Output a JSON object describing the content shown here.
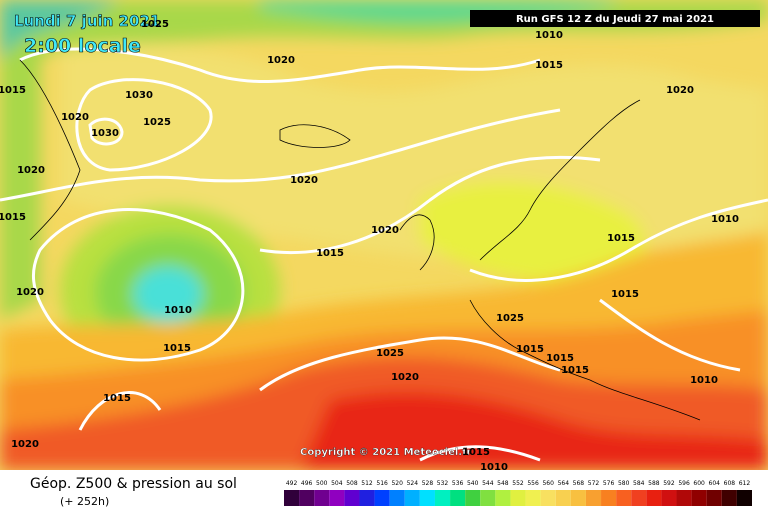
{
  "date": "Lundi 7 juin 2021",
  "time": "2:00 locale",
  "run": "Run GFS 12 Z du Jeudi 27 mai 2021",
  "copyright": "Copyright © 2021 Meteociel.fr",
  "isobar_labels": [
    "1025",
    "1010",
    "1015",
    "1020",
    "1015",
    "1030",
    "1020",
    "1020",
    "1025",
    "1030",
    "1020",
    "1020",
    "1015",
    "1010",
    "1020",
    "1015",
    "1015",
    "1020",
    "1010",
    "1015",
    "1025",
    "1015",
    "1025",
    "1015",
    "1015",
    "1015",
    "1010",
    "1020",
    "1015",
    "1020",
    "1015",
    "1010"
  ],
  "footer": {
    "title": "Géop. Z500 & pression au sol",
    "lead": "(+ 252h)"
  },
  "scale": {
    "labels": [
      492,
      496,
      500,
      504,
      508,
      512,
      516,
      520,
      524,
      528,
      532,
      536,
      540,
      544,
      548,
      552,
      556,
      560,
      564,
      568,
      572,
      576,
      580,
      584,
      588,
      592,
      596,
      600,
      604,
      608,
      612
    ],
    "colors": [
      "#30003a",
      "#500060",
      "#700090",
      "#9000c0",
      "#6000d0",
      "#2020e0",
      "#0040ff",
      "#0080ff",
      "#00b0ff",
      "#00e0ff",
      "#00f0c0",
      "#00e080",
      "#40d040",
      "#80e040",
      "#b0f040",
      "#e0f040",
      "#f0f050",
      "#f8e060",
      "#f8d050",
      "#f8c040",
      "#f8a030",
      "#f88020",
      "#f86020",
      "#f04020",
      "#e82010",
      "#d01010",
      "#b00808",
      "#900000",
      "#700000",
      "#400000",
      "#100000"
    ]
  }
}
